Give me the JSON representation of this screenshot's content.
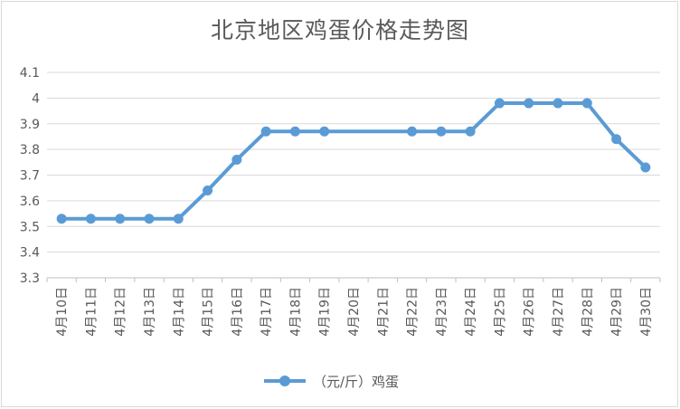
{
  "chart_data": {
    "type": "line",
    "title": "北京地区鸡蛋价格走势图",
    "xlabel": "",
    "ylabel": "",
    "categories": [
      "4月10日",
      "4月11日",
      "4月12日",
      "4月13日",
      "4月14日",
      "4月15日",
      "4月16日",
      "4月17日",
      "4月18日",
      "4月19日",
      "4月20日",
      "4月21日",
      "4月22日",
      "4月23日",
      "4月24日",
      "4月25日",
      "4月26日",
      "4月27日",
      "4月28日",
      "4月29日",
      "4月30日"
    ],
    "series": [
      {
        "name": "（元/斤）鸡蛋",
        "values": [
          3.53,
          3.53,
          3.53,
          3.53,
          3.53,
          3.64,
          3.76,
          3.87,
          3.87,
          3.87,
          null,
          null,
          3.87,
          3.87,
          3.87,
          3.98,
          3.98,
          3.98,
          3.98,
          3.84,
          3.73
        ]
      }
    ],
    "ylim": [
      3.3,
      4.1
    ],
    "yticks": [
      "3.3",
      "3.4",
      "3.5",
      "3.6",
      "3.7",
      "3.8",
      "3.9",
      "4",
      "4.1"
    ],
    "grid": true,
    "legend": "bottom",
    "color": "#5b9bd5"
  }
}
